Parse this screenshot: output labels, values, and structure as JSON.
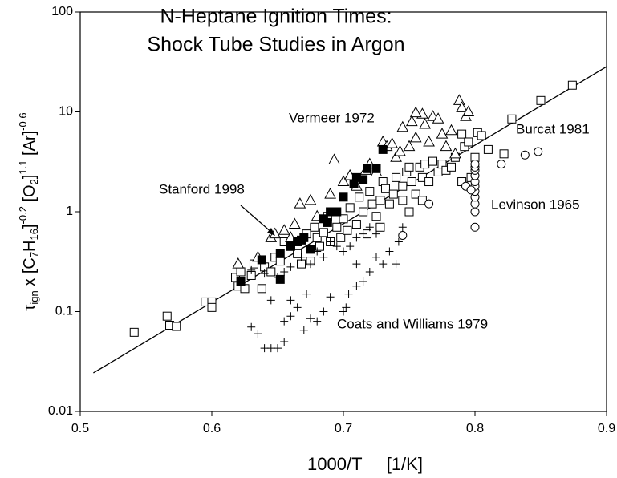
{
  "chart_data": {
    "type": "scatter",
    "title": [
      "N-Heptane Ignition Times:",
      "Shock Tube Studies in Argon"
    ],
    "xlabel": "1000/T     [1/K]",
    "ylabel": [
      {
        "text": "τ"
      },
      {
        "text": "ign",
        "shift": "sub"
      },
      {
        "text": " x [C"
      },
      {
        "text": "7",
        "shift": "sub"
      },
      {
        "text": "H"
      },
      {
        "text": "16",
        "shift": "sub"
      },
      {
        "text": "]"
      },
      {
        "text": "-0.2",
        "shift": "super"
      },
      {
        "text": " [O"
      },
      {
        "text": "2",
        "shift": "sub"
      },
      {
        "text": "]"
      },
      {
        "text": "1.1",
        "shift": "super"
      },
      {
        "text": " [Ar]"
      },
      {
        "text": "-0.6",
        "shift": "super"
      }
    ],
    "xlim": [
      0.5,
      0.9
    ],
    "ylim": [
      0.01,
      100
    ],
    "ylog": true,
    "xticks": [
      0.5,
      0.6,
      0.7,
      0.8,
      0.9
    ],
    "yticks": [
      0.01,
      0.1,
      1,
      10,
      100
    ],
    "series": [
      {
        "name": "Burcat 1981",
        "color": "#000000",
        "marker": "square-open",
        "x": [
          0.541,
          0.566,
          0.568,
          0.573,
          0.595,
          0.6,
          0.6,
          0.618,
          0.62,
          0.622,
          0.625,
          0.63,
          0.632,
          0.638,
          0.64,
          0.645,
          0.648,
          0.652,
          0.655,
          0.66,
          0.665,
          0.668,
          0.672,
          0.675,
          0.678,
          0.68,
          0.682,
          0.685,
          0.688,
          0.69,
          0.695,
          0.698,
          0.7,
          0.703,
          0.705,
          0.71,
          0.712,
          0.715,
          0.718,
          0.72,
          0.722,
          0.725,
          0.728,
          0.73,
          0.732,
          0.735,
          0.738,
          0.74,
          0.745,
          0.748,
          0.75,
          0.752,
          0.755,
          0.758,
          0.76,
          0.762,
          0.765,
          0.768,
          0.772,
          0.775,
          0.778,
          0.782,
          0.785,
          0.79,
          0.792,
          0.795,
          0.797,
          0.8,
          0.802,
          0.805,
          0.81,
          0.822,
          0.828,
          0.85,
          0.874,
          0.79,
          0.76,
          0.745,
          0.75,
          0.728
        ],
        "y": [
          0.062,
          0.09,
          0.073,
          0.071,
          0.125,
          0.125,
          0.11,
          0.22,
          0.18,
          0.25,
          0.17,
          0.23,
          0.3,
          0.17,
          0.28,
          0.25,
          0.35,
          0.32,
          0.5,
          0.45,
          0.38,
          0.3,
          0.6,
          0.32,
          0.7,
          0.55,
          0.45,
          0.62,
          0.9,
          0.5,
          0.7,
          0.55,
          0.85,
          0.65,
          1.1,
          0.75,
          1.4,
          1.0,
          0.6,
          1.6,
          1.2,
          0.9,
          1.3,
          2.0,
          1.7,
          1.2,
          1.5,
          2.2,
          1.8,
          2.5,
          2.8,
          2.0,
          1.5,
          2.8,
          2.2,
          3.0,
          2.0,
          3.2,
          2.5,
          3.0,
          2.6,
          2.8,
          3.5,
          6.0,
          4.5,
          5.0,
          2.2,
          3.5,
          6.2,
          5.8,
          4.2,
          3.8,
          8.5,
          13,
          18.5,
          2.0,
          1.3,
          1.3,
          1.0,
          0.7
        ]
      },
      {
        "name": "Vermeer 1972",
        "color": "#000000",
        "marker": "triangle-open",
        "x": [
          0.62,
          0.635,
          0.645,
          0.648,
          0.655,
          0.66,
          0.663,
          0.667,
          0.675,
          0.68,
          0.69,
          0.693,
          0.7,
          0.705,
          0.71,
          0.717,
          0.72,
          0.725,
          0.73,
          0.733,
          0.737,
          0.74,
          0.743,
          0.745,
          0.75,
          0.752,
          0.755,
          0.76,
          0.762,
          0.765,
          0.768,
          0.772,
          0.775,
          0.778,
          0.782,
          0.785,
          0.788,
          0.79,
          0.793,
          0.795,
          0.755
        ],
        "y": [
          0.3,
          0.35,
          0.55,
          0.6,
          0.65,
          0.55,
          0.75,
          1.2,
          1.3,
          0.9,
          1.5,
          3.3,
          2.0,
          2.3,
          1.8,
          2.6,
          3.0,
          2.5,
          5.0,
          4.5,
          4.8,
          3.5,
          4.0,
          7.0,
          4.5,
          8.0,
          5.5,
          9.5,
          7.5,
          5.0,
          9.0,
          8.5,
          6.0,
          4.5,
          6.5,
          3.8,
          13,
          11,
          9.0,
          10,
          9.8
        ]
      },
      {
        "name": "Stanford 1998",
        "color": "#000000",
        "marker": "square-filled",
        "x": [
          0.622,
          0.638,
          0.652,
          0.652,
          0.66,
          0.665,
          0.67,
          0.675,
          0.685,
          0.688,
          0.69,
          0.695,
          0.7,
          0.708,
          0.71,
          0.715,
          0.718,
          0.725,
          0.73,
          0.668
        ],
        "y": [
          0.2,
          0.33,
          0.21,
          0.38,
          0.45,
          0.5,
          0.55,
          0.42,
          0.85,
          0.78,
          1.0,
          1.0,
          1.4,
          1.9,
          2.2,
          2.1,
          2.7,
          2.7,
          4.2,
          0.52
        ]
      },
      {
        "name": "Levinson 1965",
        "color": "#000000",
        "marker": "circle-open",
        "x": [
          0.8,
          0.8,
          0.8,
          0.8,
          0.8,
          0.8,
          0.8,
          0.8,
          0.8,
          0.8,
          0.8,
          0.745,
          0.765,
          0.793,
          0.797,
          0.82,
          0.838,
          0.848
        ],
        "y": [
          0.7,
          1.0,
          1.2,
          1.4,
          1.6,
          1.8,
          2.0,
          2.3,
          2.6,
          2.8,
          3.0,
          0.58,
          1.2,
          1.8,
          1.65,
          3.0,
          3.7,
          4.0
        ]
      },
      {
        "name": "Coats and Williams 1979",
        "color": "#000000",
        "marker": "plus",
        "x": [
          0.64,
          0.645,
          0.65,
          0.655,
          0.63,
          0.635,
          0.655,
          0.66,
          0.665,
          0.67,
          0.675,
          0.68,
          0.645,
          0.66,
          0.672,
          0.685,
          0.69,
          0.7,
          0.702,
          0.704,
          0.71,
          0.715,
          0.72,
          0.725,
          0.73,
          0.735,
          0.74,
          0.742,
          0.745,
          0.65,
          0.66,
          0.668,
          0.675,
          0.68,
          0.685,
          0.69,
          0.695,
          0.7,
          0.705,
          0.71,
          0.715,
          0.72,
          0.725,
          0.655,
          0.64,
          0.63,
          0.71
        ],
        "y": [
          0.043,
          0.043,
          0.043,
          0.05,
          0.07,
          0.06,
          0.08,
          0.09,
          0.11,
          0.065,
          0.085,
          0.08,
          0.13,
          0.13,
          0.15,
          0.1,
          0.14,
          0.1,
          0.11,
          0.15,
          0.18,
          0.2,
          0.25,
          0.35,
          0.3,
          0.4,
          0.3,
          0.5,
          0.7,
          0.22,
          0.28,
          0.35,
          0.3,
          0.4,
          0.35,
          0.5,
          0.45,
          0.4,
          0.45,
          0.55,
          0.6,
          0.7,
          0.6,
          0.25,
          0.24,
          0.26,
          0.3
        ]
      }
    ],
    "fit": {
      "color": "#000000",
      "x": [
        0.51,
        0.9
      ],
      "y": [
        0.0243,
        28.4
      ]
    }
  }
}
